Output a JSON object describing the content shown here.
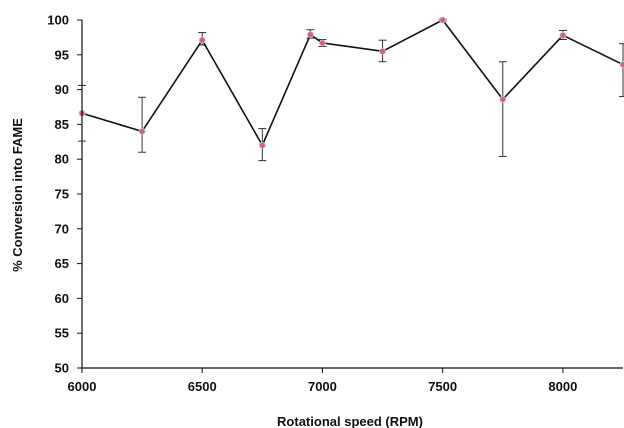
{
  "chart_data": {
    "type": "line",
    "title": "",
    "xlabel": "Rotational speed (RPM)",
    "ylabel": "% Conversion into FAME",
    "xlim": [
      6000,
      8250
    ],
    "ylim": [
      50,
      100
    ],
    "xticks": [
      6000,
      6500,
      7000,
      7500,
      8000
    ],
    "yticks": [
      50,
      55,
      60,
      65,
      70,
      75,
      80,
      85,
      90,
      95,
      100
    ],
    "grid": false,
    "legend": "none",
    "series": [
      {
        "line_color": "#111111",
        "marker_color": "#d4607e",
        "x": [
          6000,
          6250,
          6500,
          6750,
          6950,
          7000,
          7250,
          7500,
          7750,
          8000,
          8250
        ],
        "y": [
          86.6,
          84.0,
          97.1,
          82.0,
          97.9,
          96.7,
          95.5,
          100.0,
          88.6,
          97.8,
          93.6
        ],
        "error_low": [
          82.6,
          81.0,
          96.4,
          79.8,
          97.4,
          96.2,
          94.0,
          99.8,
          80.4,
          97.2,
          89.0
        ],
        "error_high": [
          90.6,
          88.9,
          98.2,
          84.4,
          98.6,
          97.2,
          97.1,
          100.1,
          94.0,
          98.5,
          96.6
        ]
      }
    ]
  }
}
